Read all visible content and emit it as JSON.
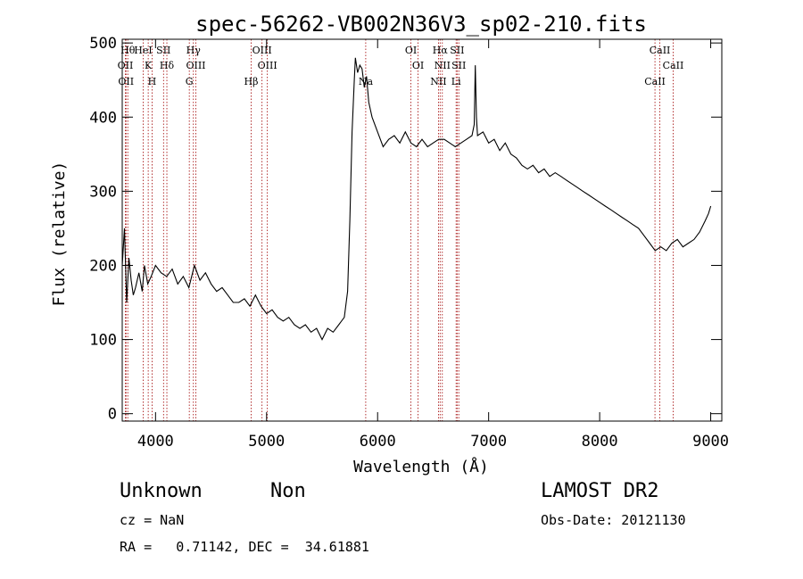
{
  "chart_data": {
    "type": "line",
    "title": "spec-56262-VB002N36V3_sp02-210.fits",
    "xlabel": "Wavelength (Å)",
    "ylabel": "Flux (relative)",
    "xlim": [
      3700,
      9100
    ],
    "ylim": [
      -10,
      505
    ],
    "x_ticks": [
      4000,
      5000,
      6000,
      7000,
      8000,
      9000
    ],
    "y_ticks": [
      0,
      100,
      200,
      300,
      400,
      500
    ],
    "grid": false,
    "series": [
      {
        "x": [
          3700,
          3720,
          3740,
          3760,
          3780,
          3800,
          3820,
          3850,
          3880,
          3900,
          3930,
          3960,
          4000,
          4050,
          4100,
          4150,
          4200,
          4250,
          4300,
          4350,
          4400,
          4450,
          4500,
          4550,
          4600,
          4650,
          4700,
          4750,
          4800,
          4850,
          4900,
          4950,
          5000,
          5050,
          5100,
          5150,
          5200,
          5250,
          5300,
          5350,
          5400,
          5450,
          5500,
          5550,
          5600,
          5650,
          5700,
          5730,
          5750,
          5770,
          5790,
          5800,
          5820,
          5840,
          5860,
          5880,
          5900,
          5920,
          5950,
          6000,
          6050,
          6100,
          6150,
          6200,
          6250,
          6300,
          6350,
          6400,
          6450,
          6500,
          6550,
          6600,
          6650,
          6700,
          6750,
          6800,
          6850,
          6870,
          6880,
          6890,
          6900,
          6950,
          7000,
          7050,
          7100,
          7150,
          7200,
          7250,
          7300,
          7350,
          7400,
          7450,
          7500,
          7550,
          7600,
          7650,
          7700,
          7750,
          7800,
          7850,
          7900,
          7950,
          8000,
          8050,
          8100,
          8150,
          8200,
          8250,
          8300,
          8350,
          8400,
          8450,
          8500,
          8550,
          8600,
          8650,
          8700,
          8750,
          8800,
          8850,
          8900,
          8950,
          8980,
          9000
        ],
        "values": [
          200,
          250,
          150,
          210,
          180,
          160,
          170,
          190,
          165,
          200,
          175,
          185,
          200,
          190,
          185,
          195,
          175,
          185,
          170,
          200,
          180,
          190,
          175,
          165,
          170,
          160,
          150,
          150,
          155,
          145,
          160,
          145,
          135,
          140,
          130,
          125,
          130,
          120,
          115,
          120,
          110,
          115,
          100,
          115,
          110,
          120,
          130,
          165,
          260,
          380,
          450,
          480,
          460,
          470,
          465,
          440,
          455,
          420,
          400,
          380,
          360,
          370,
          375,
          365,
          380,
          365,
          360,
          370,
          360,
          365,
          370,
          370,
          365,
          360,
          365,
          370,
          375,
          390,
          470,
          400,
          375,
          380,
          365,
          370,
          355,
          365,
          350,
          345,
          335,
          330,
          335,
          325,
          330,
          320,
          325,
          320,
          315,
          310,
          305,
          300,
          295,
          290,
          285,
          280,
          275,
          270,
          265,
          260,
          255,
          250,
          240,
          230,
          220,
          225,
          220,
          230,
          235,
          225,
          230,
          235,
          245,
          260,
          270,
          280
        ]
      }
    ],
    "lines": [
      {
        "x": 3750,
        "label": "Hθ"
      },
      {
        "x": 3728,
        "label": "OII"
      },
      {
        "x": 3734,
        "label": "OII"
      },
      {
        "x": 3889,
        "label": "HeI"
      },
      {
        "x": 3934,
        "label": "K"
      },
      {
        "x": 3969,
        "label": "H"
      },
      {
        "x": 4072,
        "label": "SII"
      },
      {
        "x": 4102,
        "label": "Hδ"
      },
      {
        "x": 4304,
        "label": "G"
      },
      {
        "x": 4341,
        "label": "Hγ"
      },
      {
        "x": 4363,
        "label": "OIII"
      },
      {
        "x": 4861,
        "label": "Hβ"
      },
      {
        "x": 4959,
        "label": "OIII"
      },
      {
        "x": 5007,
        "label": "OIII"
      },
      {
        "x": 5893,
        "label": "Na"
      },
      {
        "x": 6300,
        "label": "OI"
      },
      {
        "x": 6364,
        "label": "OI"
      },
      {
        "x": 6548,
        "label": "NII"
      },
      {
        "x": 6563,
        "label": "Hα"
      },
      {
        "x": 6583,
        "label": "NII"
      },
      {
        "x": 6707,
        "label": "Li"
      },
      {
        "x": 6716,
        "label": "SII"
      },
      {
        "x": 6731,
        "label": "SII"
      },
      {
        "x": 8498,
        "label": "CaII"
      },
      {
        "x": 8542,
        "label": "CaII"
      },
      {
        "x": 8662,
        "label": "CaII"
      }
    ]
  },
  "info": {
    "object_class": "Unknown",
    "subclass": "Non",
    "survey": "LAMOST DR2",
    "cz": "cz = NaN",
    "obs_date": "Obs-Date: 20121130",
    "coords": "RA =   0.71142, DEC =  34.61881"
  }
}
